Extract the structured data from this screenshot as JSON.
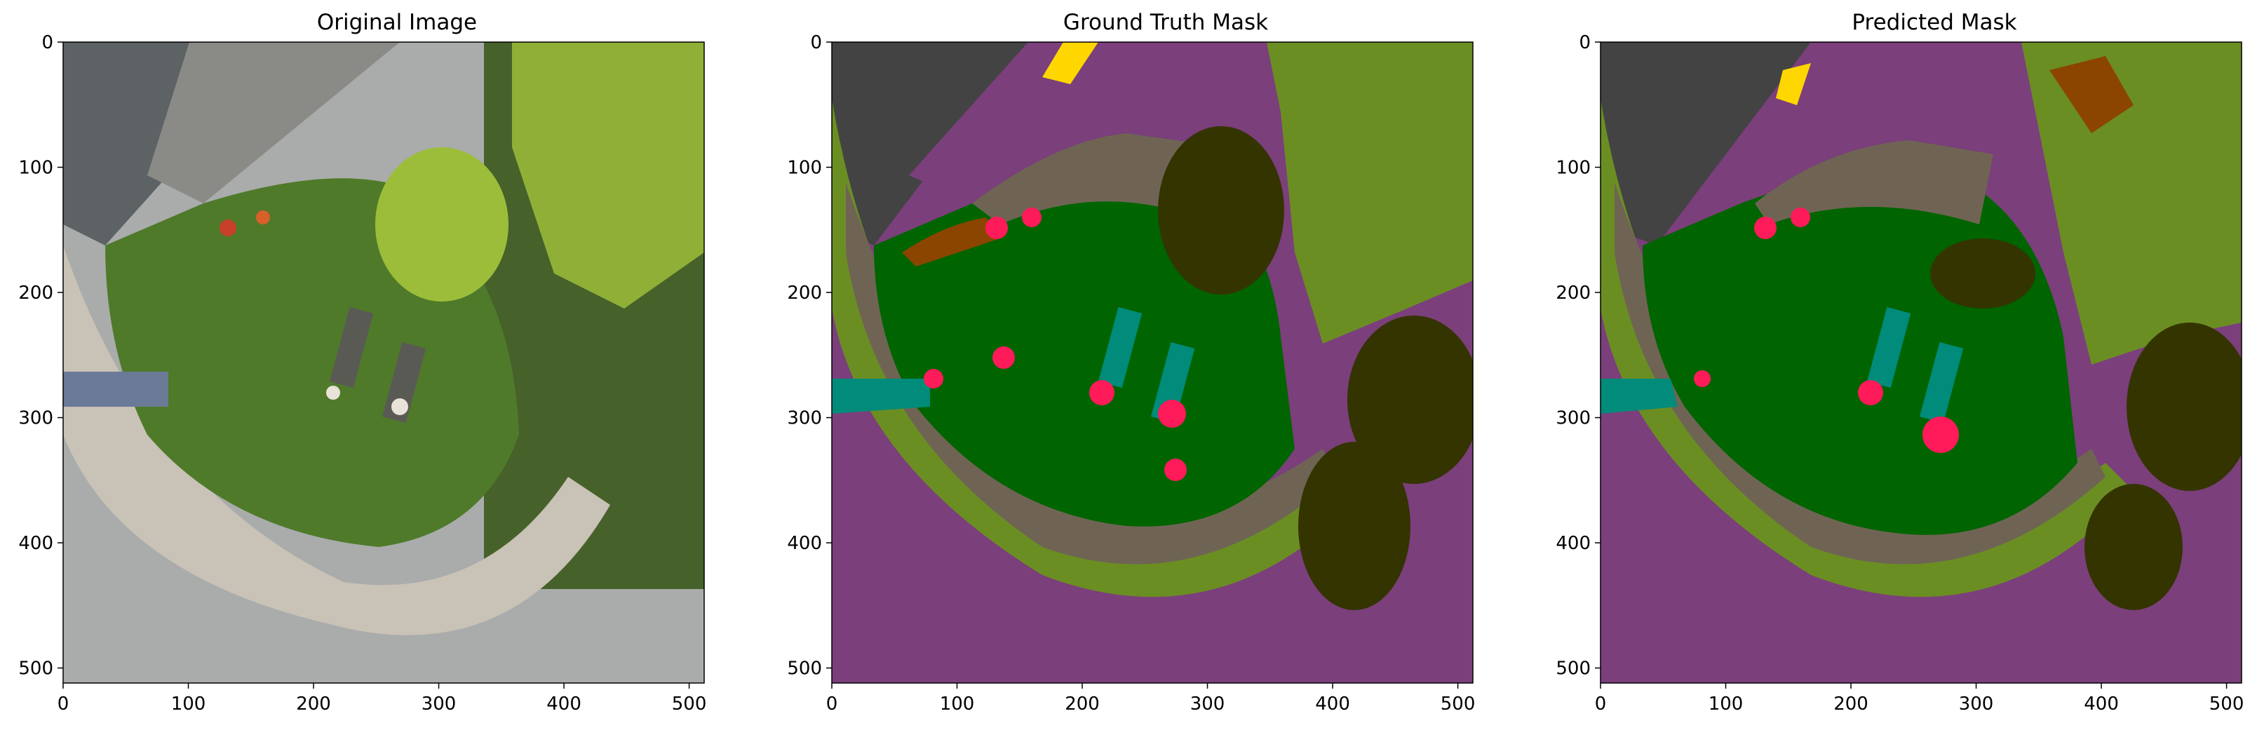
{
  "panels": [
    {
      "title": "Original Image"
    },
    {
      "title": "Ground Truth Mask"
    },
    {
      "title": "Predicted Mask"
    }
  ],
  "axes": {
    "x_ticks": [
      "0",
      "100",
      "200",
      "300",
      "400",
      "500"
    ],
    "y_ticks": [
      "0",
      "100",
      "200",
      "300",
      "400",
      "500"
    ],
    "x_range": [
      0,
      512
    ],
    "y_range": [
      0,
      512
    ]
  },
  "colors": {
    "roof": "#434343",
    "road": "#7b3f7b",
    "grass": "#006400",
    "vegetation_light": "#6b8e23",
    "tree": "#343400",
    "gravel": "#6f6454",
    "soil": "#8b4500",
    "person": "#ff1a5a",
    "object": "#008b7a",
    "wall": "#6a6aa8",
    "yellow": "#ffd700",
    "photo_grass": "#4f7a2a",
    "photo_road": "#a9acab",
    "photo_gravel": "#c9c2b6",
    "photo_roof": "#5d6265",
    "photo_hedge": "#9cbd3a",
    "photo_tree": "#47612a"
  }
}
